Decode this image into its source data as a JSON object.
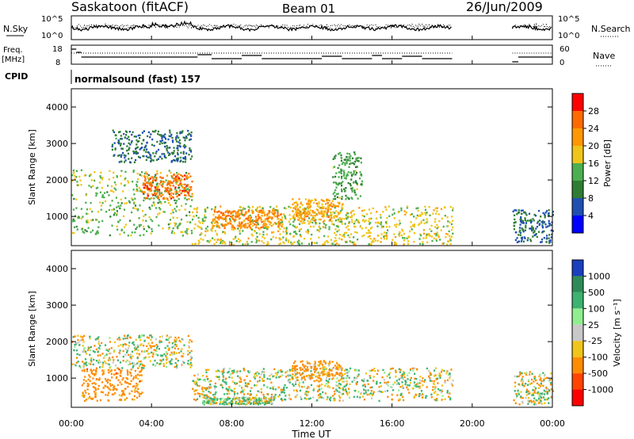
{
  "header": {
    "station": "Saskatoon (fitACF)",
    "beam": "Beam 01",
    "date": "26/Jun/2009"
  },
  "noise_panel": {
    "left_label": "N.Sky",
    "left_ticks": [
      "10^5",
      "10^0"
    ],
    "right_label": "N.Search",
    "right_ticks": [
      "10^5",
      "10^0"
    ]
  },
  "freq_panel": {
    "left_label_1": "Freq.",
    "left_label_2": "[MHz]",
    "left_ticks": [
      "18",
      "8"
    ],
    "right_label": "Nave",
    "right_ticks": [
      "60",
      "0"
    ]
  },
  "cpid": {
    "label": "CPID",
    "value": "normalsound (fast) 157"
  },
  "x_axis": {
    "label": "Time UT",
    "ticks": [
      "00:00",
      "04:00",
      "08:00",
      "12:00",
      "16:00",
      "20:00",
      "00:00"
    ]
  },
  "y_axis": {
    "label": "Slant Range [km]",
    "ticks": [
      "1000",
      "2000",
      "3000",
      "4000"
    ]
  },
  "power_colorbar": {
    "label": "Power [dB]",
    "ticks": [
      "4",
      "8",
      "12",
      "16",
      "20",
      "24",
      "28"
    ],
    "colors": [
      "#0000ff",
      "#1f4fb0",
      "#2e7d32",
      "#4caf50",
      "#f0c419",
      "#ff9800",
      "#ff6a00",
      "#ff0000"
    ]
  },
  "velocity_colorbar": {
    "label": "Velocity [m s⁻¹]",
    "ticks": [
      "1000",
      "500",
      "100",
      "25",
      "-25",
      "-100",
      "-500",
      "-1000"
    ],
    "colors": [
      "#1a3fbf",
      "#2e8b57",
      "#3cb371",
      "#90ee90",
      "#c8c8c8",
      "#f0c419",
      "#ff8c00",
      "#ff4500",
      "#ff0000"
    ]
  },
  "chart_data": {
    "type": "heatmap",
    "title": "Saskatoon (fitACF) Beam 01 26/Jun/2009",
    "xlabel": "Time UT",
    "ylabel": "Slant Range [km]",
    "xlim": [
      "00:00",
      "24:00"
    ],
    "ylim": [
      200,
      4500
    ],
    "data_gaps_ut": [
      [
        "19:00",
        "22:00"
      ]
    ],
    "panels": [
      {
        "quantity": "Power",
        "units": "dB",
        "range": [
          0,
          30
        ],
        "regions": [
          {
            "t": [
              0.0,
              6.0
            ],
            "r": [
              500,
              2300
            ],
            "level": 14
          },
          {
            "t": [
              2.0,
              6.0
            ],
            "r": [
              2500,
              3400
            ],
            "level": 8
          },
          {
            "t": [
              3.5,
              6.0
            ],
            "r": [
              1500,
              2200
            ],
            "level": 24
          },
          {
            "t": [
              6.0,
              19.0
            ],
            "r": [
              250,
              1300
            ],
            "level": 16
          },
          {
            "t": [
              7.0,
              10.5
            ],
            "r": [
              700,
              1200
            ],
            "level": 22
          },
          {
            "t": [
              11.0,
              13.5
            ],
            "r": [
              900,
              1500
            ],
            "level": 20
          },
          {
            "t": [
              13.0,
              14.5
            ],
            "r": [
              1500,
              2800
            ],
            "level": 12
          },
          {
            "t": [
              22.0,
              24.0
            ],
            "r": [
              300,
              1200
            ],
            "level": 8
          }
        ]
      },
      {
        "quantity": "Velocity",
        "units": "m s-1",
        "range": [
          -1000,
          1000
        ],
        "regions": [
          {
            "t": [
              0.0,
              6.0
            ],
            "r": [
              1300,
              2200
            ],
            "level": 0
          },
          {
            "t": [
              0.5,
              3.5
            ],
            "r": [
              400,
              1300
            ],
            "level": -300
          },
          {
            "t": [
              6.0,
              19.0
            ],
            "r": [
              400,
              1300
            ],
            "level": 0
          },
          {
            "t": [
              6.5,
              10.0
            ],
            "r": [
              300,
              500
            ],
            "level": 60
          },
          {
            "t": [
              11.0,
              13.5
            ],
            "r": [
              1000,
              1500
            ],
            "level": -200
          },
          {
            "t": [
              22.0,
              24.0
            ],
            "r": [
              300,
              1200
            ],
            "level": 0
          }
        ]
      }
    ]
  }
}
